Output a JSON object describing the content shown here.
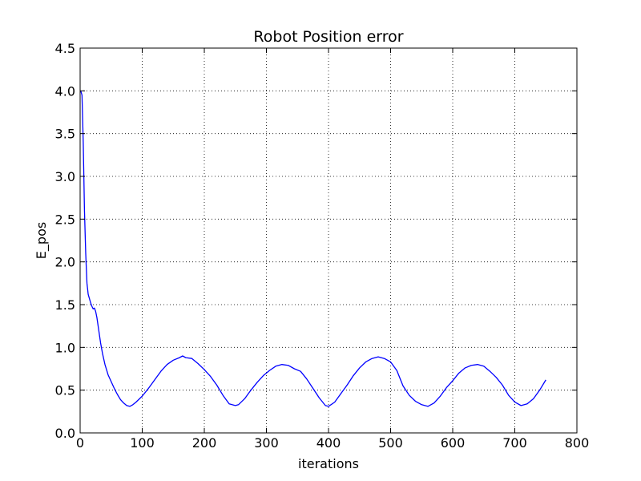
{
  "chart_data": {
    "type": "line",
    "title": "Robot Position error",
    "xlabel": "iterations",
    "ylabel": "E_pos",
    "xlim": [
      0,
      800
    ],
    "ylim": [
      0,
      4.5
    ],
    "xticks": [
      0,
      100,
      200,
      300,
      400,
      500,
      600,
      700,
      800
    ],
    "xtick_labels": [
      "0",
      "100",
      "200",
      "300",
      "400",
      "500",
      "600",
      "700",
      "800"
    ],
    "yticks": [
      0.0,
      0.5,
      1.0,
      1.5,
      2.0,
      2.5,
      3.0,
      3.5,
      4.0,
      4.5
    ],
    "ytick_labels": [
      "0.0",
      "0.5",
      "1.0",
      "1.5",
      "2.0",
      "2.5",
      "3.0",
      "3.5",
      "4.0",
      "4.5"
    ],
    "grid": true,
    "series": [
      {
        "color": "#0000ff",
        "points": [
          [
            1,
            4.0
          ],
          [
            3,
            3.95
          ],
          [
            5,
            3.4
          ],
          [
            7,
            2.6
          ],
          [
            9,
            2.1
          ],
          [
            11,
            1.75
          ],
          [
            13,
            1.62
          ],
          [
            15,
            1.57
          ],
          [
            17,
            1.52
          ],
          [
            19,
            1.48
          ],
          [
            21,
            1.45
          ],
          [
            23,
            1.46
          ],
          [
            25,
            1.42
          ],
          [
            27,
            1.35
          ],
          [
            30,
            1.2
          ],
          [
            33,
            1.05
          ],
          [
            36,
            0.93
          ],
          [
            40,
            0.8
          ],
          [
            45,
            0.68
          ],
          [
            50,
            0.6
          ],
          [
            55,
            0.52
          ],
          [
            60,
            0.45
          ],
          [
            65,
            0.39
          ],
          [
            70,
            0.35
          ],
          [
            75,
            0.32
          ],
          [
            80,
            0.31
          ],
          [
            85,
            0.33
          ],
          [
            90,
            0.36
          ],
          [
            100,
            0.43
          ],
          [
            110,
            0.52
          ],
          [
            120,
            0.62
          ],
          [
            130,
            0.72
          ],
          [
            140,
            0.8
          ],
          [
            150,
            0.85
          ],
          [
            160,
            0.88
          ],
          [
            165,
            0.9
          ],
          [
            170,
            0.88
          ],
          [
            180,
            0.87
          ],
          [
            190,
            0.81
          ],
          [
            200,
            0.74
          ],
          [
            210,
            0.66
          ],
          [
            220,
            0.56
          ],
          [
            230,
            0.44
          ],
          [
            240,
            0.34
          ],
          [
            250,
            0.32
          ],
          [
            255,
            0.33
          ],
          [
            265,
            0.4
          ],
          [
            275,
            0.5
          ],
          [
            285,
            0.59
          ],
          [
            295,
            0.67
          ],
          [
            305,
            0.73
          ],
          [
            315,
            0.78
          ],
          [
            325,
            0.8
          ],
          [
            335,
            0.79
          ],
          [
            345,
            0.75
          ],
          [
            355,
            0.72
          ],
          [
            365,
            0.63
          ],
          [
            375,
            0.52
          ],
          [
            385,
            0.41
          ],
          [
            395,
            0.32
          ],
          [
            400,
            0.31
          ],
          [
            410,
            0.36
          ],
          [
            420,
            0.46
          ],
          [
            430,
            0.56
          ],
          [
            440,
            0.67
          ],
          [
            450,
            0.76
          ],
          [
            460,
            0.83
          ],
          [
            470,
            0.87
          ],
          [
            480,
            0.89
          ],
          [
            490,
            0.87
          ],
          [
            500,
            0.83
          ],
          [
            510,
            0.73
          ],
          [
            520,
            0.55
          ],
          [
            530,
            0.44
          ],
          [
            540,
            0.37
          ],
          [
            550,
            0.33
          ],
          [
            560,
            0.31
          ],
          [
            570,
            0.35
          ],
          [
            580,
            0.43
          ],
          [
            590,
            0.53
          ],
          [
            600,
            0.61
          ],
          [
            610,
            0.7
          ],
          [
            620,
            0.76
          ],
          [
            630,
            0.79
          ],
          [
            640,
            0.8
          ],
          [
            650,
            0.78
          ],
          [
            660,
            0.72
          ],
          [
            670,
            0.65
          ],
          [
            680,
            0.56
          ],
          [
            690,
            0.44
          ],
          [
            700,
            0.36
          ],
          [
            710,
            0.32
          ],
          [
            720,
            0.34
          ],
          [
            730,
            0.4
          ],
          [
            740,
            0.5
          ],
          [
            750,
            0.62
          ]
        ]
      }
    ]
  }
}
